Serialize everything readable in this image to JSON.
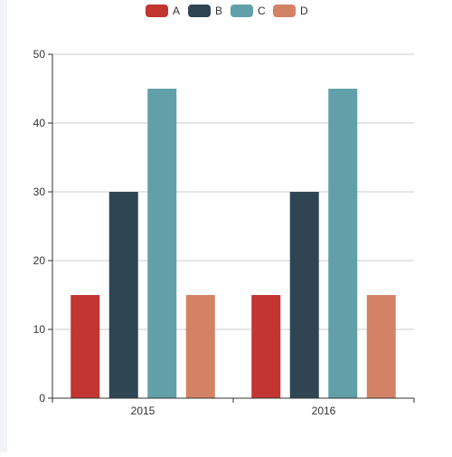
{
  "chart_data": {
    "type": "bar",
    "title": "",
    "xlabel": "",
    "ylabel": "",
    "categories": [
      "2015",
      "2016"
    ],
    "series": [
      {
        "name": "A",
        "values": [
          15,
          15
        ],
        "color": "#c23531"
      },
      {
        "name": "B",
        "values": [
          30,
          30
        ],
        "color": "#2f4554"
      },
      {
        "name": "C",
        "values": [
          45,
          45
        ],
        "color": "#61a0a8"
      },
      {
        "name": "D",
        "values": [
          15,
          15
        ],
        "color": "#d48265"
      }
    ],
    "ylim": [
      0,
      50
    ],
    "yticks": [
      "0",
      "10",
      "20",
      "30",
      "40",
      "50"
    ],
    "grid": true,
    "legend_position": "top-center"
  }
}
